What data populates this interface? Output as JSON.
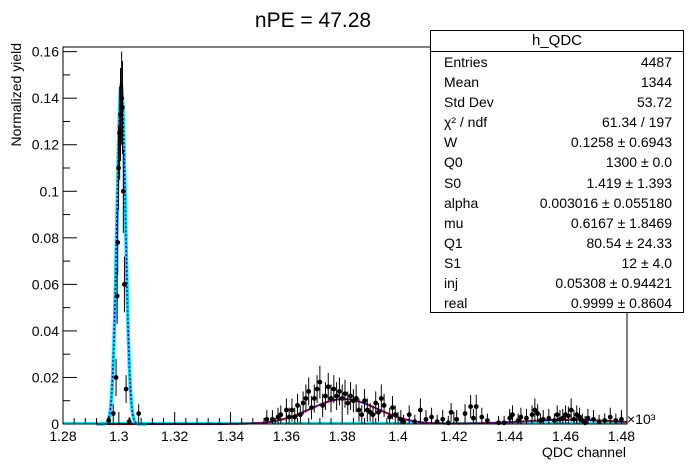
{
  "chart_data": {
    "type": "scatter",
    "title": "nPE = 47.28",
    "xlabel": "QDC channel",
    "ylabel": "Normalized yield",
    "x_exponent_label": "×10³",
    "xlim": [
      1.28,
      1.482
    ],
    "ylim": [
      0,
      0.162
    ],
    "x_ticks": [
      "1.28",
      "1.3",
      "1.32",
      "1.34",
      "1.36",
      "1.38",
      "1.4",
      "1.42",
      "1.44",
      "1.46",
      "1.48"
    ],
    "x_tick_values": [
      1.28,
      1.3,
      1.32,
      1.34,
      1.36,
      1.38,
      1.4,
      1.42,
      1.44,
      1.46,
      1.48
    ],
    "y_ticks": [
      "0",
      "0.02",
      "0.04",
      "0.06",
      "0.08",
      "0.1",
      "0.12",
      "0.14",
      "0.16"
    ],
    "y_tick_values": [
      0,
      0.02,
      0.04,
      0.06,
      0.08,
      0.1,
      0.12,
      0.14,
      0.16
    ],
    "points": [
      [
        1.2964,
        0.0015,
        0.002
      ],
      [
        1.298,
        0.0045,
        0.004
      ],
      [
        1.299,
        0.02,
        0.008
      ],
      [
        1.2994,
        0.055,
        0.012
      ],
      [
        1.2996,
        0.078,
        0.014
      ],
      [
        1.2999,
        0.11,
        0.018
      ],
      [
        1.3003,
        0.125,
        0.02
      ],
      [
        1.3006,
        0.133,
        0.02
      ],
      [
        1.301,
        0.14,
        0.02
      ],
      [
        1.3013,
        0.136,
        0.02
      ],
      [
        1.3016,
        0.1,
        0.018
      ],
      [
        1.302,
        0.06,
        0.012
      ],
      [
        1.3026,
        0.015,
        0.006
      ],
      [
        1.3037,
        0.001,
        0.002
      ],
      [
        1.3071,
        0.0045,
        0.004
      ],
      [
        1.353,
        0.002,
        0.004
      ],
      [
        1.355,
        0.002,
        0.004
      ],
      [
        1.357,
        0.003,
        0.004
      ],
      [
        1.358,
        0.004,
        0.004
      ],
      [
        1.36,
        0.006,
        0.005
      ],
      [
        1.361,
        0.003,
        0.004
      ],
      [
        1.362,
        0.006,
        0.005
      ],
      [
        1.363,
        0.003,
        0.004
      ],
      [
        1.364,
        0.008,
        0.005
      ],
      [
        1.365,
        0.004,
        0.004
      ],
      [
        1.366,
        0.009,
        0.005
      ],
      [
        1.367,
        0.011,
        0.006
      ],
      [
        1.368,
        0.014,
        0.006
      ],
      [
        1.369,
        0.007,
        0.005
      ],
      [
        1.37,
        0.011,
        0.006
      ],
      [
        1.371,
        0.015,
        0.006
      ],
      [
        1.372,
        0.018,
        0.007
      ],
      [
        1.373,
        0.008,
        0.005
      ],
      [
        1.374,
        0.012,
        0.006
      ],
      [
        1.375,
        0.016,
        0.006
      ],
      [
        1.376,
        0.011,
        0.006
      ],
      [
        1.377,
        0.015,
        0.006
      ],
      [
        1.378,
        0.012,
        0.006
      ],
      [
        1.379,
        0.014,
        0.006
      ],
      [
        1.38,
        0.011,
        0.006
      ],
      [
        1.381,
        0.013,
        0.006
      ],
      [
        1.382,
        0.009,
        0.005
      ],
      [
        1.383,
        0.012,
        0.006
      ],
      [
        1.384,
        0.01,
        0.005
      ],
      [
        1.385,
        0.011,
        0.006
      ],
      [
        1.386,
        0.006,
        0.005
      ],
      [
        1.387,
        0.004,
        0.004
      ],
      [
        1.388,
        0.01,
        0.005
      ],
      [
        1.389,
        0.006,
        0.005
      ],
      [
        1.39,
        0.005,
        0.004
      ],
      [
        1.391,
        0.004,
        0.004
      ],
      [
        1.392,
        0.009,
        0.005
      ],
      [
        1.393,
        0.005,
        0.004
      ],
      [
        1.394,
        0.011,
        0.006
      ],
      [
        1.395,
        0.008,
        0.005
      ],
      [
        1.397,
        0.003,
        0.004
      ],
      [
        1.398,
        0.007,
        0.005
      ],
      [
        1.399,
        0.004,
        0.004
      ],
      [
        1.401,
        0.002,
        0.004
      ],
      [
        1.402,
        0.001,
        0.003
      ],
      [
        1.404,
        0.004,
        0.004
      ],
      [
        1.406,
        0.001,
        0.003
      ],
      [
        1.408,
        0.006,
        0.005
      ],
      [
        1.41,
        0.002,
        0.004
      ],
      [
        1.412,
        0.003,
        0.004
      ],
      [
        1.414,
        0.001,
        0.003
      ],
      [
        1.416,
        0.002,
        0.004
      ],
      [
        1.418,
        0.0005,
        0.003
      ],
      [
        1.419,
        0.005,
        0.004
      ],
      [
        1.421,
        0.002,
        0.004
      ],
      [
        1.424,
        0.0045,
        0.004
      ],
      [
        1.426,
        0.0075,
        0.005
      ],
      [
        1.427,
        0.0025,
        0.004
      ],
      [
        1.428,
        0.0075,
        0.005
      ],
      [
        1.43,
        0.003,
        0.004
      ],
      [
        1.432,
        0.0015,
        0.003
      ],
      [
        1.436,
        0.0005,
        0.003
      ],
      [
        1.438,
        0.0005,
        0.003
      ],
      [
        1.44,
        0.0025,
        0.004
      ],
      [
        1.441,
        0.004,
        0.004
      ],
      [
        1.443,
        0.0015,
        0.003
      ],
      [
        1.444,
        0.003,
        0.004
      ],
      [
        1.446,
        0.0025,
        0.004
      ],
      [
        1.448,
        0.004,
        0.004
      ],
      [
        1.449,
        0.006,
        0.005
      ],
      [
        1.45,
        0.0045,
        0.004
      ],
      [
        1.451,
        0.0015,
        0.003
      ],
      [
        1.452,
        0.002,
        0.004
      ],
      [
        1.454,
        0.0025,
        0.004
      ],
      [
        1.456,
        0.0015,
        0.003
      ],
      [
        1.457,
        0.004,
        0.004
      ],
      [
        1.458,
        0.002,
        0.004
      ],
      [
        1.459,
        0.0025,
        0.004
      ],
      [
        1.46,
        0.004,
        0.004
      ],
      [
        1.461,
        0.0035,
        0.004
      ],
      [
        1.462,
        0.006,
        0.005
      ],
      [
        1.463,
        0.002,
        0.004
      ],
      [
        1.464,
        0.004,
        0.004
      ],
      [
        1.465,
        0.003,
        0.004
      ],
      [
        1.466,
        0.0015,
        0.003
      ],
      [
        1.467,
        0.0005,
        0.003
      ],
      [
        1.468,
        0.0025,
        0.004
      ],
      [
        1.47,
        0.002,
        0.004
      ],
      [
        1.472,
        0.001,
        0.003
      ],
      [
        1.474,
        0.0015,
        0.003
      ],
      [
        1.476,
        0.003,
        0.004
      ],
      [
        1.478,
        0.0015,
        0.003
      ],
      [
        1.48,
        0.002,
        0.004
      ]
    ],
    "fits": {
      "pedestal": {
        "mean": 1.30085,
        "sigma": 0.00155,
        "amp": 0.146
      },
      "signal": {
        "mean": 1.3806,
        "sigma": 0.012,
        "amp": 0.0107
      },
      "tail": {
        "mean": 1.4615,
        "sigma": 0.017,
        "amp": 0.0018
      }
    },
    "colors": {
      "points": "#000000",
      "total_fit_dotted": "#0000ff",
      "total_fit_band": "#00e5ee",
      "signal_fit": "#cc0000",
      "baseline": "#00e5ee"
    },
    "grid": false,
    "legend": "top-right"
  },
  "stats": {
    "title": "h_QDC",
    "rows": [
      {
        "label": "Entries",
        "value": "4487"
      },
      {
        "label": "Mean",
        "value": "1344"
      },
      {
        "label": "Std Dev",
        "value": "53.72"
      },
      {
        "label": "χ² / ndf",
        "value": "61.34 / 197"
      },
      {
        "label": "W",
        "value": "0.1258 ± 0.6943"
      },
      {
        "label": "Q0",
        "value": "1300 ± 0.0"
      },
      {
        "label": "S0",
        "value": "1.419 ± 1.393"
      },
      {
        "label": "alpha",
        "value": "0.003016 ± 0.055180"
      },
      {
        "label": "mu",
        "value": "0.6167 ± 1.8469"
      },
      {
        "label": "Q1",
        "value": "80.54 ± 24.33"
      },
      {
        "label": "S1",
        "value": "12 ± 4.0"
      },
      {
        "label": "inj",
        "value": "0.05308 ± 0.94421"
      },
      {
        "label": "real",
        "value": "0.9999 ± 0.8604"
      }
    ]
  }
}
